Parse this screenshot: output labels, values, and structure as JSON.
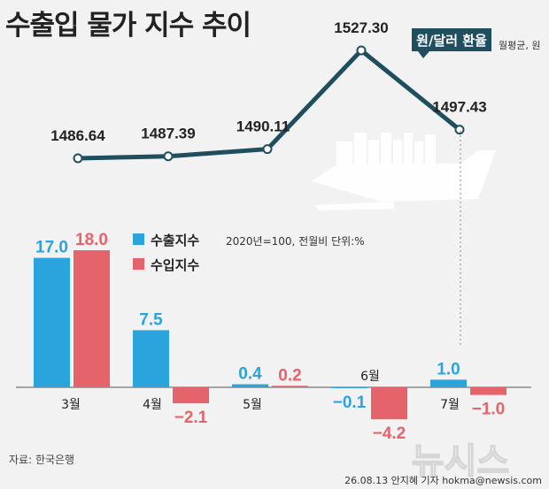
{
  "title": "수출입 물가 지수 추이",
  "fx_label": "원/달러 환율",
  "fx_unit": "월평균, 원",
  "unit_note": "2020년=100, 전월비 단위:%",
  "source": "자료: 한국은행",
  "credit": "26.08.13 안지혜 기자 hokma@newsis.com",
  "watermark": "뉴시스",
  "colors": {
    "export": "#2ba3dc",
    "import": "#e5646b",
    "line": "#1f4e5f",
    "text": "#222222"
  },
  "chart_data": [
    {
      "type": "line",
      "title": "원/달러 환율",
      "unit": "월평균, 원",
      "categories": [
        "3월",
        "4월",
        "5월",
        "6월",
        "7월"
      ],
      "values": [
        1486.64,
        1487.39,
        1490.11,
        1527.3,
        1497.43
      ],
      "value_labels": [
        "1486.64",
        "1487.39",
        "1490.11",
        "1527.30",
        "1497.43"
      ]
    },
    {
      "type": "bar",
      "unit": "2020년=100, 전월비 단위:%",
      "categories": [
        "3월",
        "4월",
        "5월",
        "6월",
        "7월"
      ],
      "series": [
        {
          "name": "수출지수",
          "values": [
            17.0,
            7.5,
            0.4,
            -0.1,
            1.0
          ],
          "labels": [
            "17.0",
            "7.5",
            "0.4",
            "−0.1",
            "1.0"
          ]
        },
        {
          "name": "수입지수",
          "values": [
            18.0,
            -2.1,
            0.2,
            -4.2,
            -1.0
          ],
          "labels": [
            "18.0",
            "−2.1",
            "0.2",
            "−4.2",
            "−1.0"
          ]
        }
      ]
    }
  ]
}
